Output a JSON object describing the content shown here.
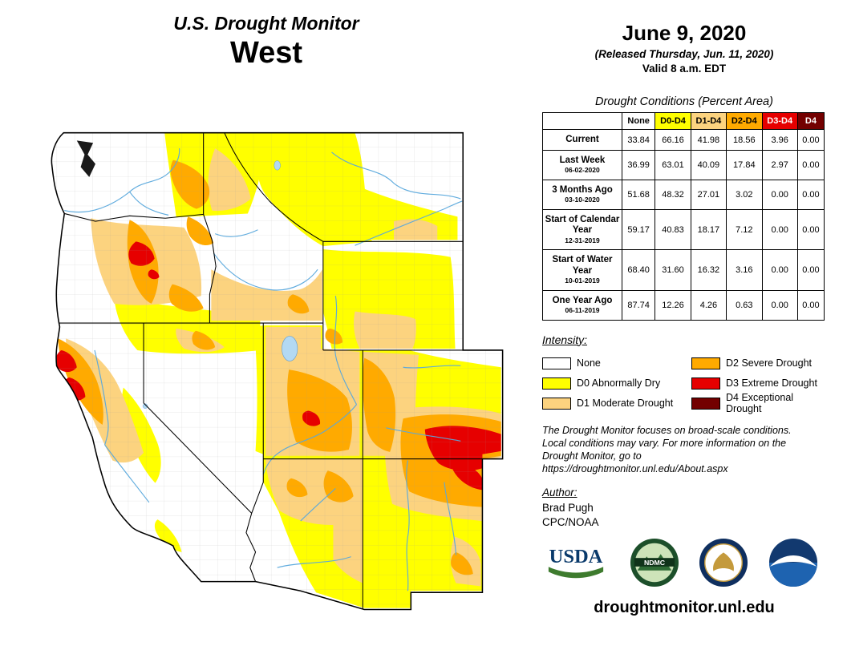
{
  "header": {
    "title": "U.S. Drought Monitor",
    "region": "West",
    "date": "June 9, 2020",
    "released": "(Released Thursday, Jun. 11, 2020)",
    "valid": "Valid 8 a.m. EDT"
  },
  "table": {
    "title": "Drought Conditions (Percent Area)",
    "columns": [
      {
        "label": "None",
        "bg": "#FFFFFF",
        "fg": "#000000"
      },
      {
        "label": "D0-D4",
        "bg": "#FFFF00",
        "fg": "#000000"
      },
      {
        "label": "D1-D4",
        "bg": "#FCD37F",
        "fg": "#000000"
      },
      {
        "label": "D2-D4",
        "bg": "#FFAA00",
        "fg": "#000000"
      },
      {
        "label": "D3-D4",
        "bg": "#E60000",
        "fg": "#FFFFFF"
      },
      {
        "label": "D4",
        "bg": "#730000",
        "fg": "#FFFFFF"
      }
    ],
    "rows": [
      {
        "label": "Current",
        "sub": "",
        "values": [
          "33.84",
          "66.16",
          "41.98",
          "18.56",
          "3.96",
          "0.00"
        ]
      },
      {
        "label": "Last Week",
        "sub": "06-02-2020",
        "values": [
          "36.99",
          "63.01",
          "40.09",
          "17.84",
          "2.97",
          "0.00"
        ]
      },
      {
        "label": "3 Months Ago",
        "sub": "03-10-2020",
        "values": [
          "51.68",
          "48.32",
          "27.01",
          "3.02",
          "0.00",
          "0.00"
        ]
      },
      {
        "label": "Start of Calendar Year",
        "sub": "12-31-2019",
        "values": [
          "59.17",
          "40.83",
          "18.17",
          "7.12",
          "0.00",
          "0.00"
        ]
      },
      {
        "label": "Start of Water Year",
        "sub": "10-01-2019",
        "values": [
          "68.40",
          "31.60",
          "16.32",
          "3.16",
          "0.00",
          "0.00"
        ]
      },
      {
        "label": "One Year Ago",
        "sub": "06-11-2019",
        "values": [
          "87.74",
          "12.26",
          "4.26",
          "0.63",
          "0.00",
          "0.00"
        ]
      }
    ]
  },
  "legend": {
    "title": "Intensity:",
    "items": [
      {
        "label": "None",
        "color": "#FFFFFF"
      },
      {
        "label": "D0 Abnormally Dry",
        "color": "#FFFF00"
      },
      {
        "label": "D1 Moderate Drought",
        "color": "#FCD37F"
      },
      {
        "label": "D2 Severe Drought",
        "color": "#FFAA00"
      },
      {
        "label": "D3 Extreme Drought",
        "color": "#E60000"
      },
      {
        "label": "D4 Exceptional Drought",
        "color": "#730000"
      }
    ]
  },
  "notes": {
    "line1": "The Drought Monitor focuses on broad-scale conditions.",
    "line2": "Local conditions may vary. For more information on the",
    "line3": "Drought Monitor, go to https://droughtmonitor.unl.edu/About.aspx"
  },
  "author": {
    "heading": "Author:",
    "name": "Brad Pugh",
    "org": "CPC/NOAA"
  },
  "logos": {
    "usda": "USDA",
    "ndmc": "NDMC"
  },
  "footer": {
    "url": "droughtmonitor.unl.edu"
  }
}
